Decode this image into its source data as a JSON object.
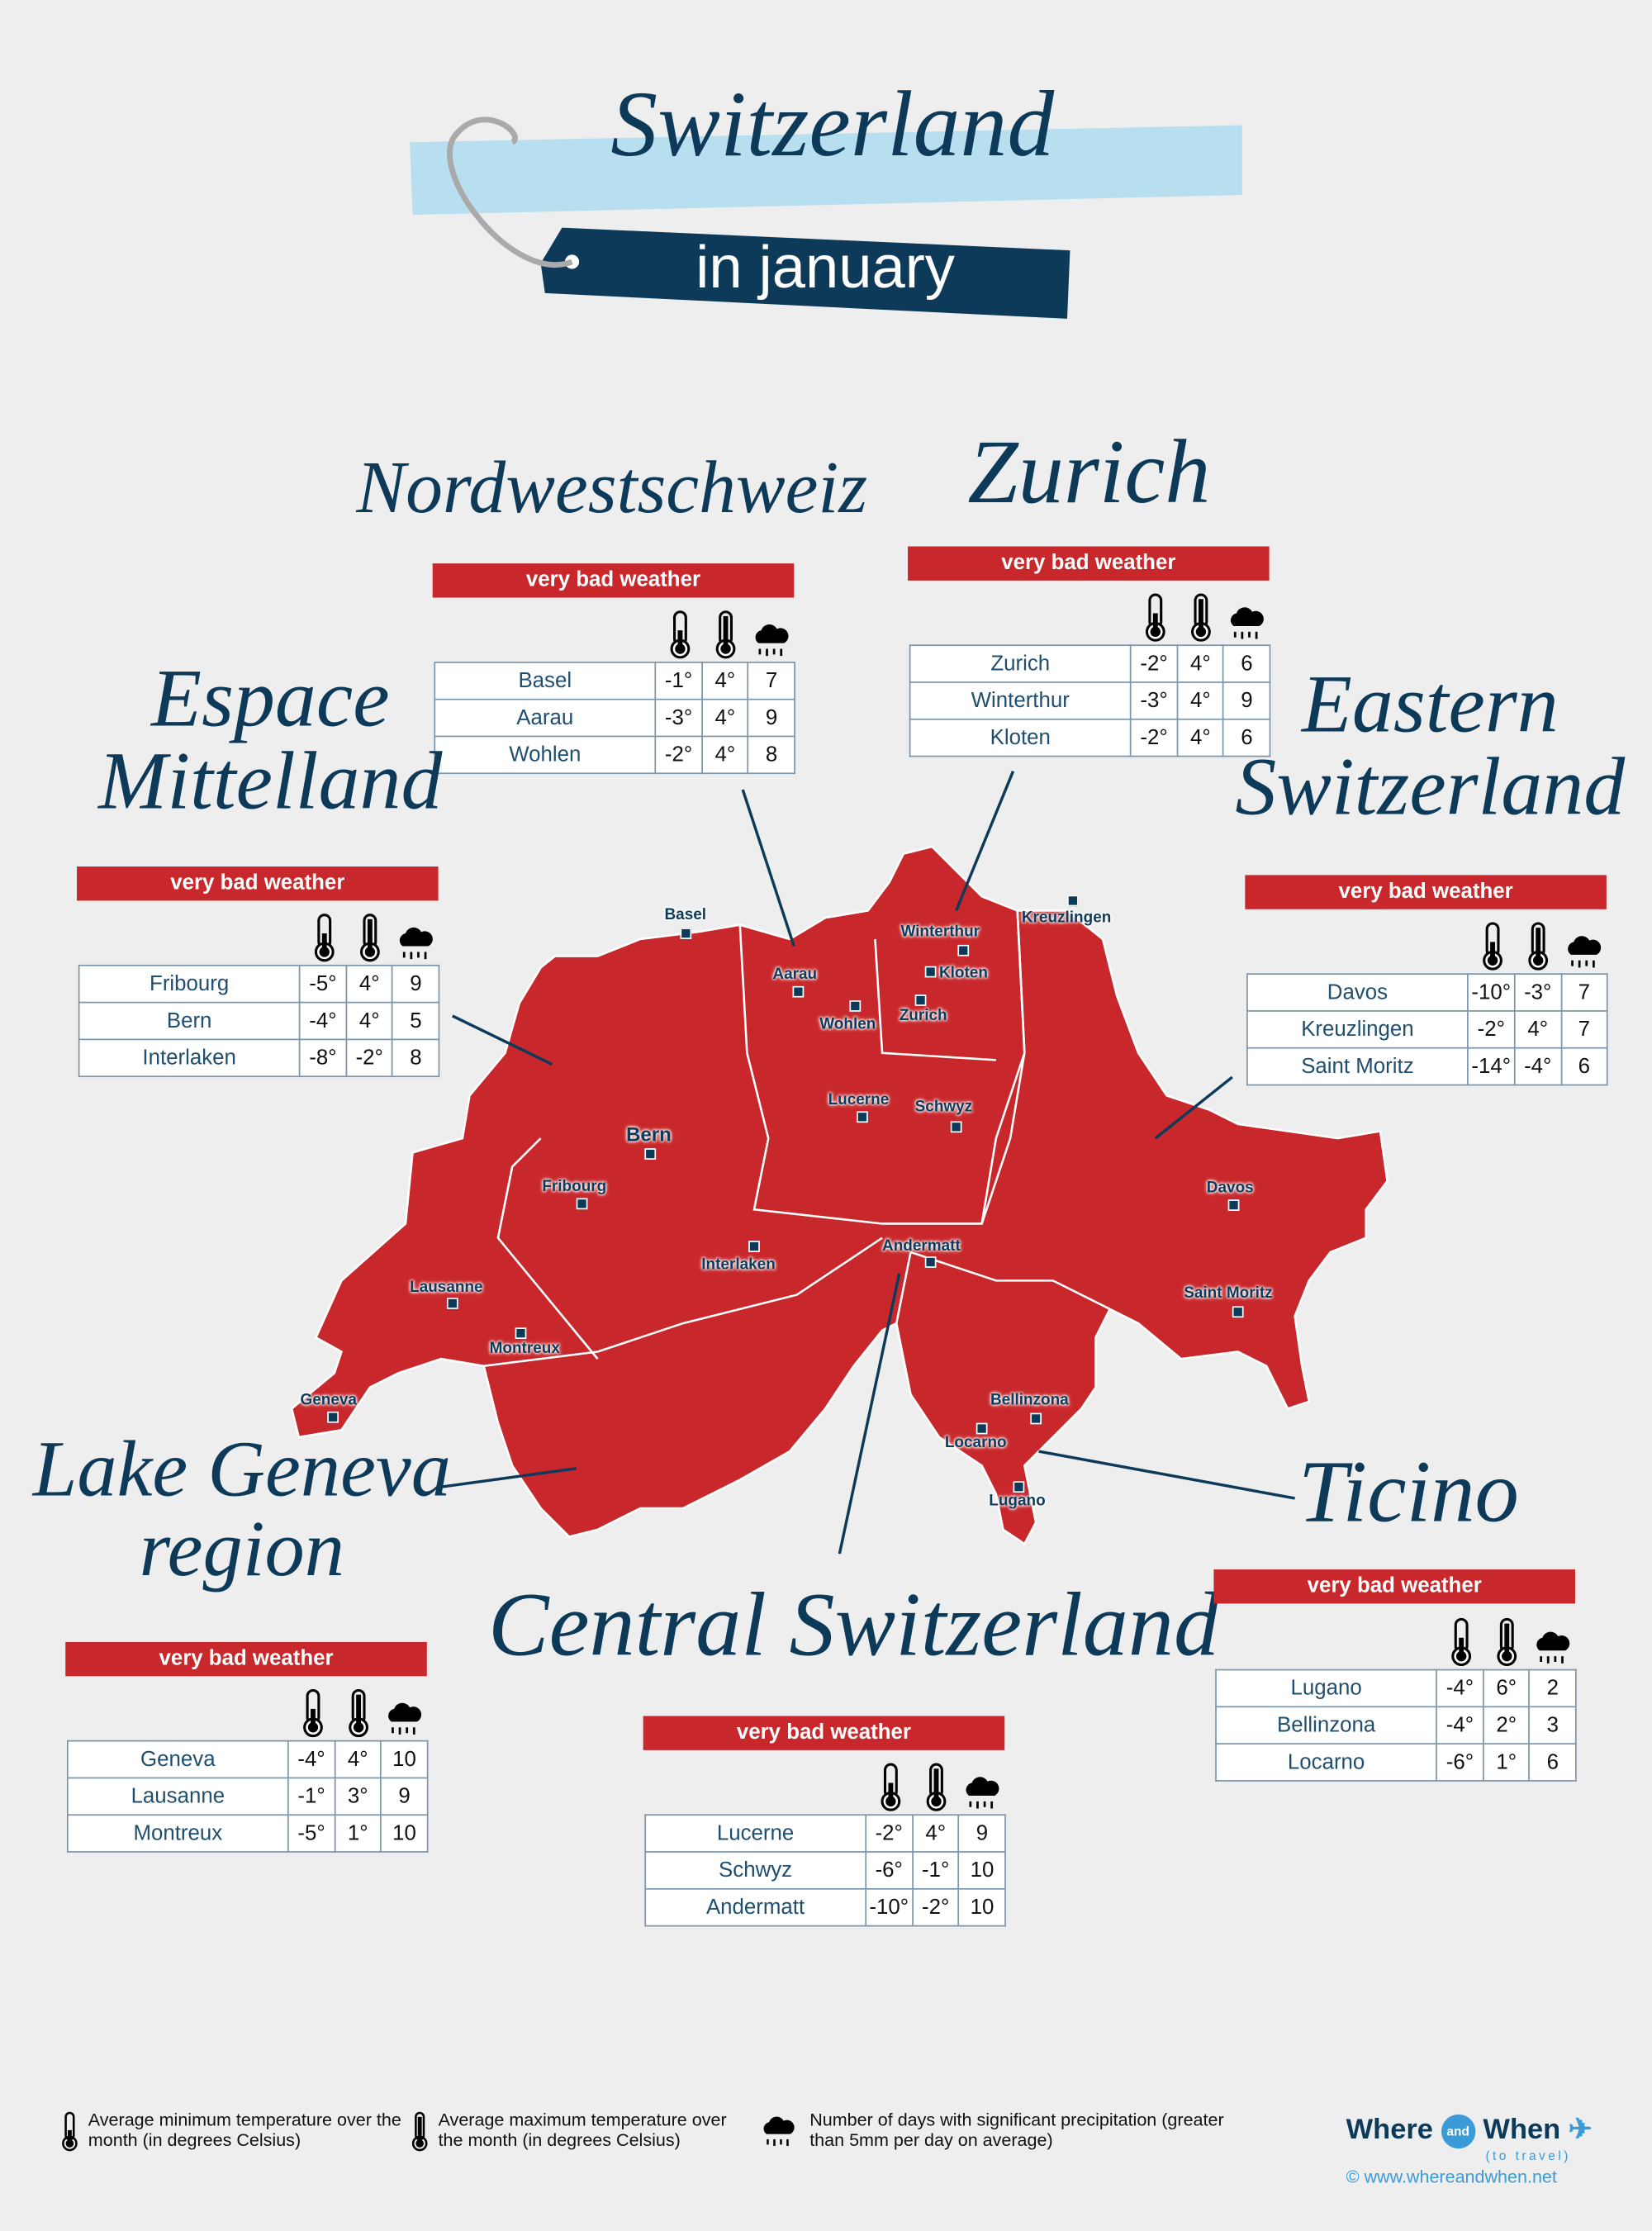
{
  "header": {
    "title": "Switzerland",
    "subtitle": "in january"
  },
  "colors": {
    "accent": "#c8282b",
    "navy": "#0e3a5a",
    "light_blue": "#b8dff0",
    "background": "#eeeeee"
  },
  "icons": {
    "min_temp": "thermometer-low-icon",
    "max_temp": "thermometer-high-icon",
    "precip": "rain-cloud-icon"
  },
  "regions": [
    {
      "id": "nordwestschweiz",
      "title": "Nordwestschweiz",
      "rating": "very bad weather",
      "rows": [
        [
          "Basel",
          "-1°",
          "4°",
          "7"
        ],
        [
          "Aarau",
          "-3°",
          "4°",
          "9"
        ],
        [
          "Wohlen",
          "-2°",
          "4°",
          "8"
        ]
      ]
    },
    {
      "id": "zurich",
      "title": "Zurich",
      "rating": "very bad weather",
      "rows": [
        [
          "Zurich",
          "-2°",
          "4°",
          "6"
        ],
        [
          "Winterthur",
          "-3°",
          "4°",
          "9"
        ],
        [
          "Kloten",
          "-2°",
          "4°",
          "6"
        ]
      ]
    },
    {
      "id": "espace-mittelland",
      "title": "Espace Mittelland",
      "rating": "very bad weather",
      "rows": [
        [
          "Fribourg",
          "-5°",
          "4°",
          "9"
        ],
        [
          "Bern",
          "-4°",
          "4°",
          "5"
        ],
        [
          "Interlaken",
          "-8°",
          "-2°",
          "8"
        ]
      ]
    },
    {
      "id": "eastern-switzerland",
      "title": "Eastern Switzerland",
      "rating": "very bad weather",
      "rows": [
        [
          "Davos",
          "-10°",
          "-3°",
          "7"
        ],
        [
          "Kreuzlingen",
          "-2°",
          "4°",
          "7"
        ],
        [
          "Saint Moritz",
          "-14°",
          "-4°",
          "6"
        ]
      ]
    },
    {
      "id": "lake-geneva",
      "title": "Lake Geneva region",
      "rating": "very bad weather",
      "rows": [
        [
          "Geneva",
          "-4°",
          "4°",
          "10"
        ],
        [
          "Lausanne",
          "-1°",
          "3°",
          "9"
        ],
        [
          "Montreux",
          "-5°",
          "1°",
          "10"
        ]
      ]
    },
    {
      "id": "central-switzerland",
      "title": "Central Switzerland",
      "rating": "very bad weather",
      "rows": [
        [
          "Lucerne",
          "-2°",
          "4°",
          "9"
        ],
        [
          "Schwyz",
          "-6°",
          "-1°",
          "10"
        ],
        [
          "Andermatt",
          "-10°",
          "-2°",
          "10"
        ]
      ]
    },
    {
      "id": "ticino",
      "title": "Ticino",
      "rating": "very bad weather",
      "rows": [
        [
          "Lugano",
          "-4°",
          "6°",
          "2"
        ],
        [
          "Bellinzona",
          "-4°",
          "2°",
          "3"
        ],
        [
          "Locarno",
          "-6°",
          "1°",
          "6"
        ]
      ]
    }
  ],
  "map_cities": [
    "Basel",
    "Aarau",
    "Winterthur",
    "Kloten",
    "Kreuzlingen",
    "Wohlen",
    "Zurich",
    "Bern",
    "Fribourg",
    "Lucerne",
    "Schwyz",
    "Interlaken",
    "Andermatt",
    "Davos",
    "Saint Moritz",
    "Lausanne",
    "Montreux",
    "Geneva",
    "Bellinzona",
    "Locarno",
    "Lugano"
  ],
  "legend": {
    "min": "Average minimum temperature over the month (in degrees Celsius)",
    "max": "Average maximum temperature over the month (in degrees Celsius)",
    "precip": "Number of days with significant precipitation (greater than 5mm per day on average)"
  },
  "brand": {
    "logo": "Where and When (to travel)",
    "url": "© www.whereandwhen.net"
  }
}
